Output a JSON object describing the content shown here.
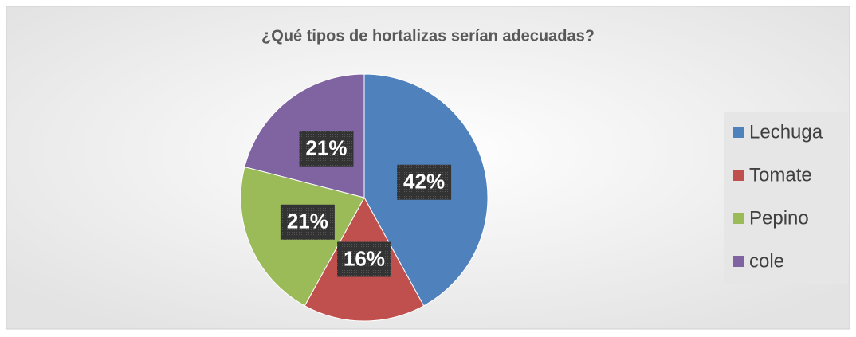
{
  "chart_data": {
    "type": "pie",
    "title": "¿Qué tipos de hortalizas serían adecuadas?",
    "categories": [
      "Lechuga",
      "Tomate",
      "Pepino",
      "cole"
    ],
    "values": [
      42,
      16,
      21,
      21
    ],
    "value_labels": [
      "42%",
      "16%",
      "21%",
      "21%"
    ],
    "colors": [
      "#4f81bd",
      "#c0504d",
      "#9bbb59",
      "#8064a2"
    ],
    "legend": "right"
  }
}
